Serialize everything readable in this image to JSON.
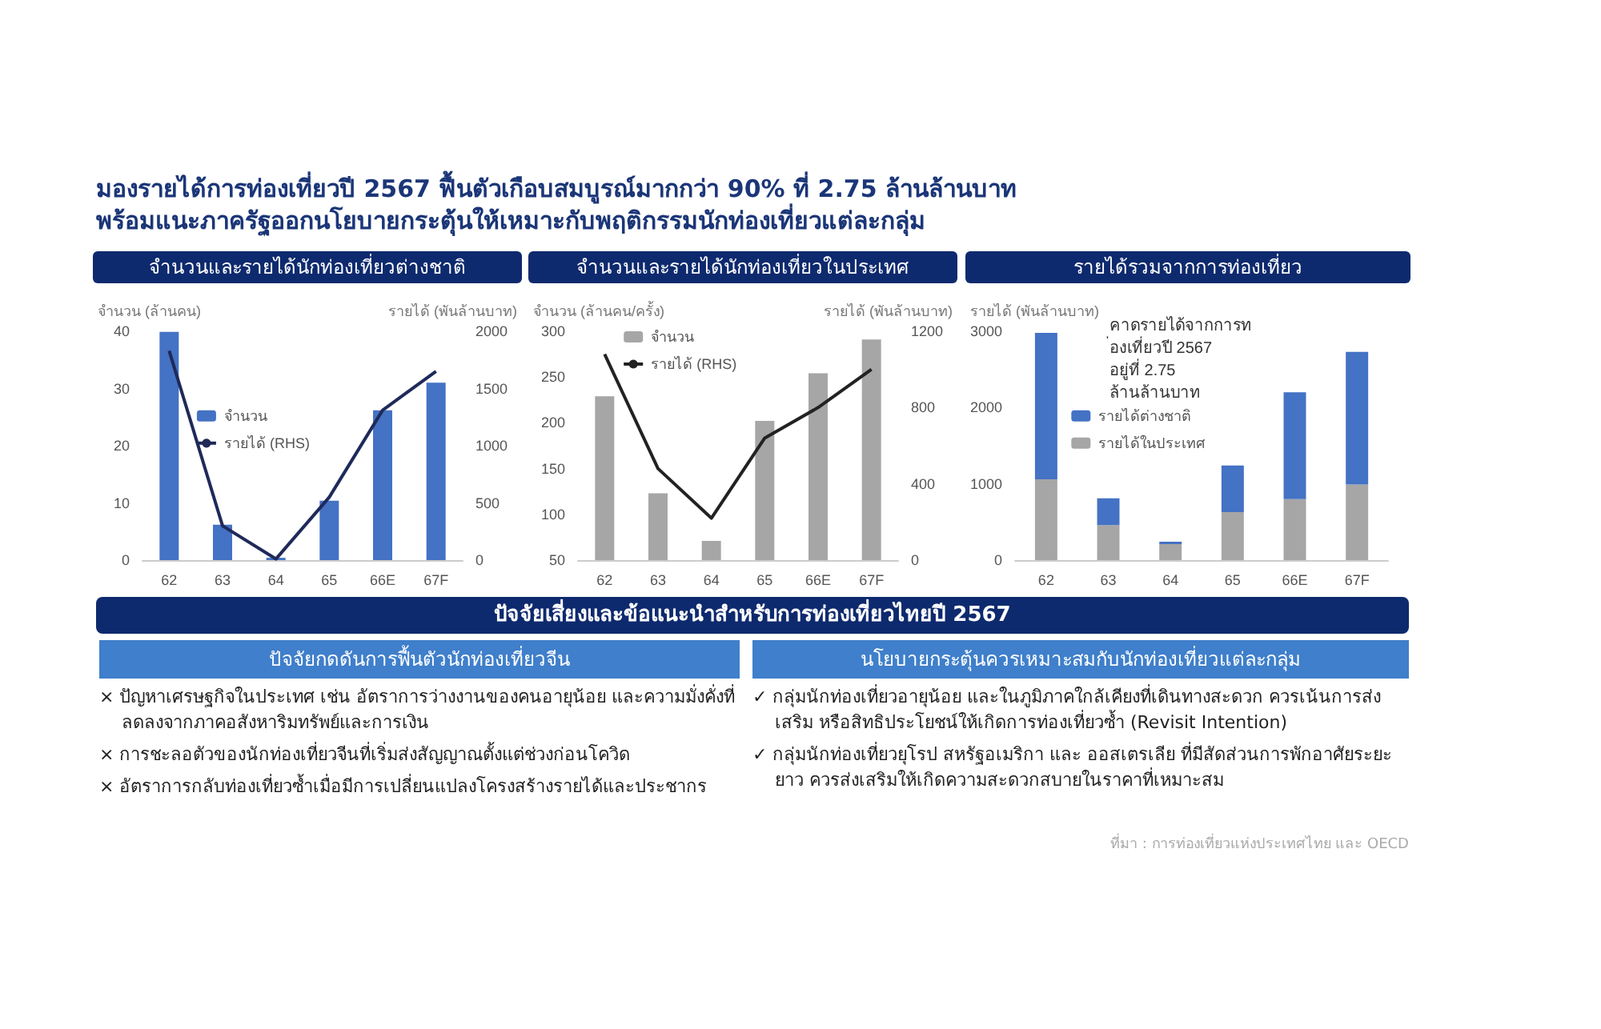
{
  "chart_data": [
    {
      "type": "other",
      "title": "มองรายได้การท่องเที่ยวปี 2567 ฟื้นตัวเกือบสมบูรณ์มากกว่า 90% ที่ 2.75 ล้านล้านบาท",
      "subtitle": "พร้อมแนะภาครัฐออกนโยบายกระตุ้นให้เหมาะกับพฤติกรรมนักท่องเที่ยวแต่ละกลุ่ม"
    },
    {
      "type": "bar",
      "title": "จำนวนและรายได้นักท่องเที่ยวต่างชาติ",
      "ylabel": "จำนวน (ล้านคน)",
      "y2label": "รายได้ (พันล้านบาท)",
      "categories": [
        "62",
        "63",
        "64",
        "65",
        "66E",
        "67F"
      ],
      "series": [
        {
          "name": "จำนวน",
          "type": "bar",
          "color": "#4472c4",
          "values": [
            39.9,
            6.2,
            0.4,
            10.4,
            26.2,
            31
          ]
        },
        {
          "name": "รายได้ (RHS)",
          "type": "line",
          "axis": "y2",
          "color": "#1f2a5a",
          "values": [
            1830,
            300,
            10,
            550,
            1310,
            1650
          ]
        }
      ],
      "ylim": [
        0,
        40
      ],
      "yticks": [
        0,
        10,
        20,
        30,
        40
      ],
      "y2lim": [
        0,
        2000
      ],
      "y2ticks": [
        0,
        500,
        1000,
        1500,
        2000
      ],
      "legend": "center",
      "marker": "none"
    },
    {
      "type": "bar",
      "title": "จำนวนและรายได้นักท่องเที่ยวในประเทศ",
      "ylabel": "จำนวน (ล้านคน/ครั้ง)",
      "y2label": "รายได้ (พันล้านบาท)",
      "categories": [
        "62",
        "63",
        "64",
        "65",
        "66E",
        "67F"
      ],
      "series": [
        {
          "name": "จำนวน",
          "type": "bar",
          "color": "#a6a6a6",
          "values": [
            229,
            123,
            71,
            202,
            254,
            291
          ]
        },
        {
          "name": "รายได้ (RHS)",
          "type": "line",
          "axis": "y2",
          "color": "#222222",
          "values": [
            1080,
            480,
            220,
            640,
            800,
            1000
          ]
        }
      ],
      "ylim": [
        50,
        300
      ],
      "yticks": [
        50,
        100,
        150,
        200,
        250,
        300
      ],
      "y2lim": [
        0,
        1200
      ],
      "y2ticks": [
        0,
        400,
        800,
        1200
      ],
      "legend": "top left",
      "marker": "none"
    },
    {
      "type": "bar",
      "title": "รายได้รวมจากการท่องเที่ยว",
      "ylabel": "รายได้ (พันล้านบาท)",
      "categories": [
        "62",
        "63",
        "64",
        "65",
        "66E",
        "67F"
      ],
      "stacked": true,
      "series": [
        {
          "name": "รายได้ในประเทศ",
          "color": "#a6a6a6",
          "values": [
            1060,
            460,
            210,
            630,
            800,
            990
          ]
        },
        {
          "name": "รายได้ต่างชาติ",
          "color": "#4472c4",
          "values": [
            1920,
            350,
            30,
            610,
            1400,
            1740
          ]
        }
      ],
      "ylim": [
        0,
        3000
      ],
      "yticks": [
        0,
        1000,
        2000,
        3000
      ],
      "legend": "center",
      "annotations": [
        "คาดรายได้จากการท่องเที่ยวปี 2567 อยู่ที่ 2.75 ล้านล้านบาท"
      ]
    },
    {
      "type": "other",
      "title": "ปัจจัยเสี่ยงและข้อแนะนำสำหรับการท่องเที่ยวไทยปี 2567"
    },
    {
      "type": "other",
      "title": "ปัจจัยกดดันการฟื้นตัวนักท่องเที่ยวจีน",
      "annotations": [
        "× ปัญหาเศรษฐกิจในประเทศ เช่น อัตราการว่างงานของคนอายุน้อย และความมั่งคั่งที่ลดลงจากภาคอสังหาริมทรัพย์และการเงิน",
        "× การชะลอตัวของนักท่องเที่ยวจีนที่เริ่มส่งสัญญาณตั้งแต่ช่วงก่อนโควิด",
        "× อัตราการกลับท่องเที่ยวซ้ำเมื่อมีการเปลี่ยนแปลงโครงสร้างรายได้และประชากร"
      ]
    },
    {
      "type": "other",
      "title": "นโยบายกระตุ้นควรเหมาะสมกับนักท่องเที่ยวแต่ละกลุ่ม",
      "annotations": [
        "✓ กลุ่มนักท่องเที่ยวอายุน้อย และในภูมิภาคใกล้เคียงที่เดินทางสะดวก ควรเน้นการส่งเสริม หรือสิทธิประโยชน์ให้เกิดการท่องเที่ยวซ้ำ (Revisit Intention)",
        "✓ กลุ่มนักท่องเที่ยวยุโรป สหรัฐอเมริกา และ ออสเตรเลีย ที่มีสัดส่วนการพักอาศัยระยะยาว ควรส่งเสริมให้เกิดความสะดวกสบายในราคาที่เหมาะสม"
      ]
    },
    {
      "type": "other",
      "annotations": [
        "ที่มา : การท่องเที่ยวแห่งประเทศไทย และ OECD"
      ]
    }
  ]
}
